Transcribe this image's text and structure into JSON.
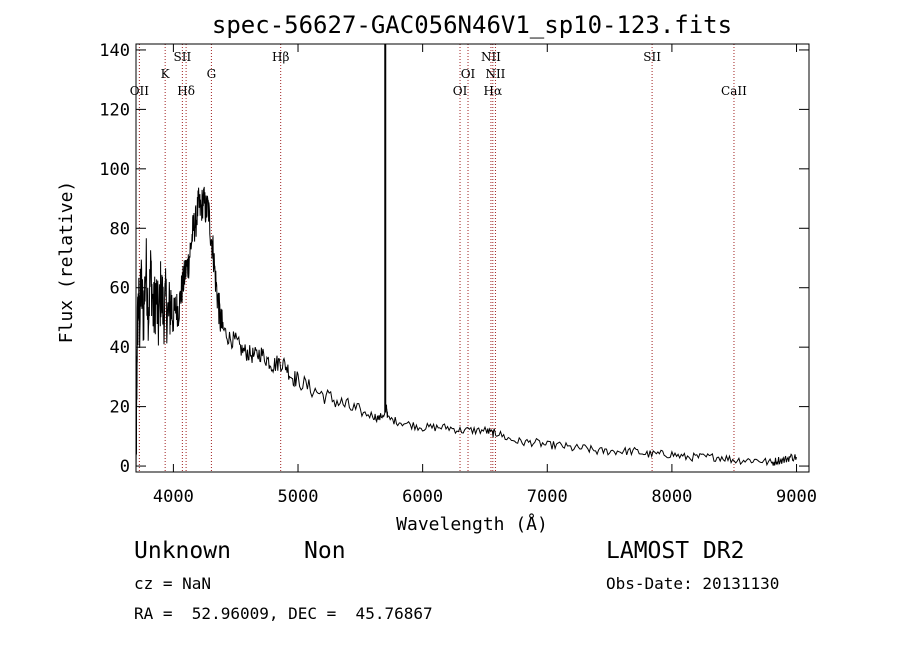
{
  "chart_data": {
    "type": "line",
    "title": "spec-56627-GAC056N46V1_sp10-123.fits",
    "xlabel": "Wavelength (Å)",
    "ylabel": "Flux (relative)",
    "xlim": [
      3700,
      9100
    ],
    "ylim": [
      -2,
      142
    ],
    "xticks": [
      4000,
      5000,
      6000,
      7000,
      8000,
      9000
    ],
    "yticks": [
      0,
      20,
      40,
      60,
      80,
      100,
      120,
      140
    ],
    "grid": false,
    "series": [
      {
        "points": [
          [
            3700,
            2
          ],
          [
            3705,
            15
          ],
          [
            3710,
            45
          ],
          [
            3720,
            55
          ],
          [
            3730,
            48
          ],
          [
            3740,
            62
          ],
          [
            3760,
            50
          ],
          [
            3780,
            68
          ],
          [
            3800,
            52
          ],
          [
            3820,
            66
          ],
          [
            3840,
            50
          ],
          [
            3860,
            58
          ],
          [
            3880,
            48
          ],
          [
            3900,
            60
          ],
          [
            3920,
            52
          ],
          [
            3940,
            55
          ],
          [
            3960,
            50
          ],
          [
            3980,
            55
          ],
          [
            4000,
            50
          ],
          [
            4020,
            54
          ],
          [
            4040,
            52
          ],
          [
            4060,
            58
          ],
          [
            4080,
            62
          ],
          [
            4100,
            66
          ],
          [
            4120,
            68
          ],
          [
            4140,
            74
          ],
          [
            4160,
            80
          ],
          [
            4180,
            82
          ],
          [
            4200,
            88
          ],
          [
            4220,
            86
          ],
          [
            4240,
            90
          ],
          [
            4260,
            86
          ],
          [
            4280,
            87
          ],
          [
            4300,
            78
          ],
          [
            4320,
            72
          ],
          [
            4340,
            62
          ],
          [
            4360,
            55
          ],
          [
            4380,
            48
          ],
          [
            4400,
            46
          ],
          [
            4450,
            43
          ],
          [
            4500,
            42
          ],
          [
            4550,
            39
          ],
          [
            4600,
            38
          ],
          [
            4650,
            37
          ],
          [
            4700,
            38
          ],
          [
            4750,
            36
          ],
          [
            4800,
            34
          ],
          [
            4850,
            35
          ],
          [
            4900,
            34
          ],
          [
            4950,
            30
          ],
          [
            5000,
            29
          ],
          [
            5100,
            26
          ],
          [
            5200,
            24
          ],
          [
            5300,
            22
          ],
          [
            5400,
            20
          ],
          [
            5500,
            18
          ],
          [
            5600,
            17
          ],
          [
            5650,
            16
          ],
          [
            5700,
            18
          ],
          [
            5710,
            20
          ],
          [
            5720,
            16
          ],
          [
            5800,
            15
          ],
          [
            5900,
            14
          ],
          [
            6000,
            13
          ],
          [
            6100,
            13
          ],
          [
            6200,
            13
          ],
          [
            6300,
            12
          ],
          [
            6400,
            12
          ],
          [
            6500,
            12
          ],
          [
            6560,
            11
          ],
          [
            6600,
            11
          ],
          [
            6700,
            9
          ],
          [
            6800,
            8
          ],
          [
            6900,
            8
          ],
          [
            7000,
            7
          ],
          [
            7100,
            7
          ],
          [
            7200,
            6
          ],
          [
            7300,
            6
          ],
          [
            7400,
            5
          ],
          [
            7500,
            5
          ],
          [
            7600,
            5
          ],
          [
            7700,
            5
          ],
          [
            7800,
            4
          ],
          [
            7900,
            4
          ],
          [
            8000,
            4
          ],
          [
            8100,
            3
          ],
          [
            8200,
            3
          ],
          [
            8300,
            3
          ],
          [
            8400,
            3
          ],
          [
            8500,
            2
          ],
          [
            8600,
            2
          ],
          [
            8700,
            2
          ],
          [
            8800,
            1
          ],
          [
            8850,
            2
          ],
          [
            8900,
            2
          ],
          [
            8950,
            3
          ],
          [
            9000,
            3
          ]
        ]
      }
    ],
    "vertical_line": 5700,
    "line_markers": [
      {
        "label": "OII",
        "wavelength": 3727,
        "row": 3
      },
      {
        "label": "K",
        "wavelength": 3934,
        "row": 2
      },
      {
        "label": "SII",
        "wavelength": 4072,
        "row": 1
      },
      {
        "label": "Hδ",
        "wavelength": 4102,
        "row": 3
      },
      {
        "label": "G",
        "wavelength": 4305,
        "row": 2
      },
      {
        "label": "Hβ",
        "wavelength": 4861,
        "row": 1
      },
      {
        "label": "OI",
        "wavelength": 6300,
        "row": 3
      },
      {
        "label": "OI",
        "wavelength": 6364,
        "row": 2
      },
      {
        "label": "NII",
        "wavelength": 6548,
        "row": 1
      },
      {
        "label": "Hα",
        "wavelength": 6563,
        "row": 3
      },
      {
        "label": "NII",
        "wavelength": 6584,
        "row": 2
      },
      {
        "label": "SII",
        "wavelength": 7841,
        "row": 1
      },
      {
        "label": "CaII",
        "wavelength": 8498,
        "row": 3
      }
    ]
  },
  "info": {
    "class_name": "Unknown",
    "subclass": "Non",
    "survey": "LAMOST DR2",
    "cz": "cz = NaN",
    "obs_date": "Obs-Date: 20131130",
    "coords": "RA =  52.96009, DEC =  45.76867"
  }
}
